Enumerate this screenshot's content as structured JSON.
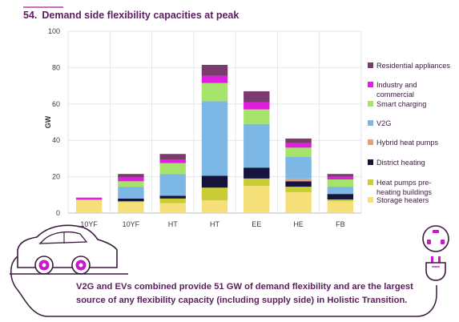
{
  "header": {
    "number": "54.",
    "title": "Demand side flexibility capacities at peak"
  },
  "chart_data": {
    "type": "bar",
    "stacked": true,
    "ylabel": "GW",
    "ylim": [
      0,
      100
    ],
    "yticks": [
      0,
      20,
      40,
      60,
      80,
      100
    ],
    "grid": true,
    "legend_position": "right",
    "categories": [
      "10YF",
      "10YF",
      "HT",
      "HT",
      "EE",
      "HE",
      "FB"
    ],
    "series": [
      {
        "name": "Storage heaters",
        "color": "#f5df78",
        "values": [
          7,
          6,
          5.5,
          7,
          15,
          11.5,
          6.5
        ]
      },
      {
        "name": "Heat pumps pre-heating buildings",
        "color": "#c8cd33",
        "values": [
          0.5,
          0.5,
          2.5,
          7,
          4,
          3,
          1
        ]
      },
      {
        "name": "District heating",
        "color": "#15143d",
        "values": [
          0,
          1.5,
          1.5,
          6.5,
          6,
          3,
          3
        ]
      },
      {
        "name": "Hybrid heat pumps",
        "color": "#e8a07a",
        "values": [
          0,
          0,
          0,
          0,
          0,
          1.5,
          0
        ]
      },
      {
        "name": "V2G",
        "color": "#7cb7e6",
        "values": [
          0,
          6.5,
          12,
          41,
          24,
          12,
          4
        ]
      },
      {
        "name": "Smart charging",
        "color": "#a6e36a",
        "values": [
          0,
          3,
          6,
          10,
          8,
          5,
          4
        ]
      },
      {
        "name": "Industry and commercial",
        "color": "#e11ee0",
        "values": [
          1,
          2,
          2,
          4,
          4,
          2.5,
          1.5
        ]
      },
      {
        "name": "Residential appliances",
        "color": "#7a3c6e",
        "values": [
          0,
          2,
          3,
          6,
          6,
          2.5,
          1.5
        ]
      }
    ],
    "legend_order": [
      "Residential appliances",
      "Industry and commercial",
      "Smart charging",
      "V2G",
      "Hybrid heat pumps",
      "District heating",
      "Heat pumps pre-heating buildings",
      "Storage heaters"
    ],
    "legend_lines": {
      "Industry and commercial": [
        "Industry and",
        "commercial"
      ],
      "Heat pumps pre-heating buildings": [
        "Heat pumps pre-",
        "heating buildings"
      ]
    }
  },
  "footer": {
    "line1": "V2G and EVs combined provide 51 GW of demand flexibility and are the largest",
    "line2": "source of any flexibility capacity (including supply side) in Holistic Transition."
  },
  "colors": {
    "accent": "#5a1d5e",
    "illustration": "#3a1a3d",
    "wheel": "#c818c8"
  }
}
